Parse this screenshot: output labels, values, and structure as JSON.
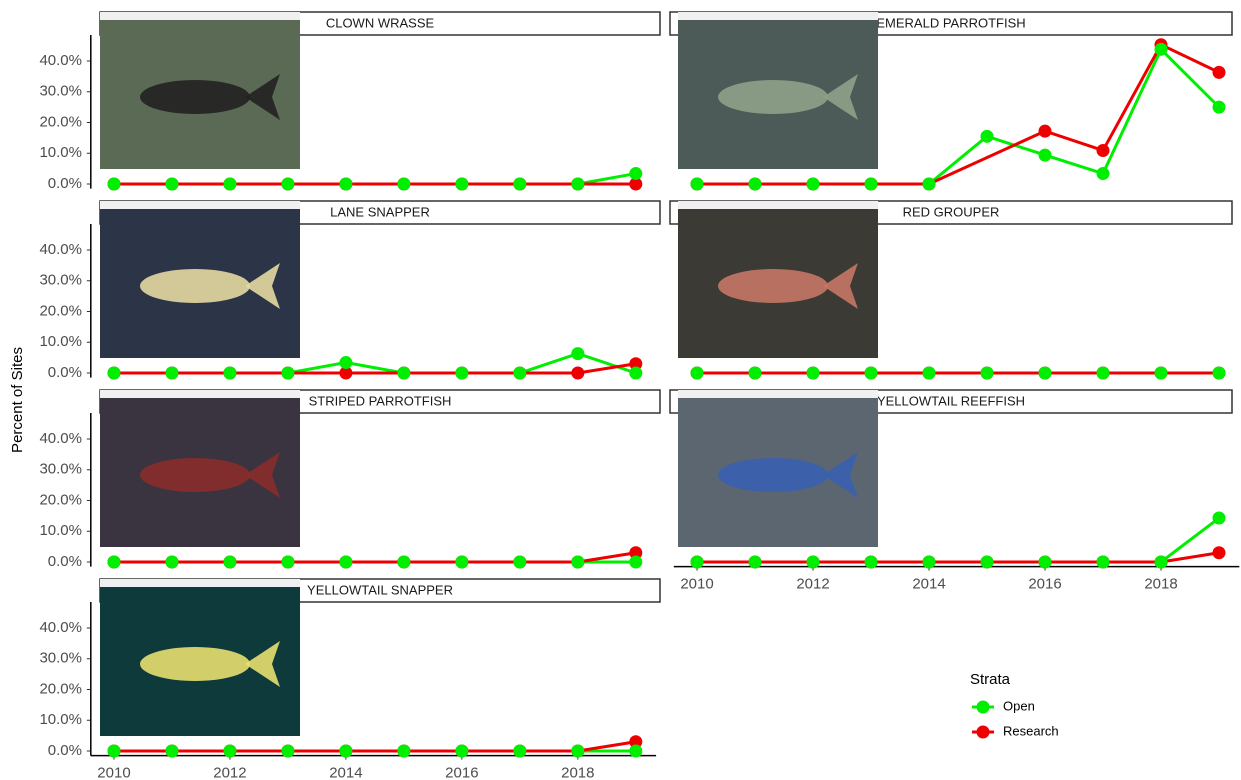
{
  "chart_data": {
    "type": "line",
    "ylabel": "Percent of Sites",
    "x": [
      2010,
      2011,
      2012,
      2013,
      2014,
      2015,
      2016,
      2017,
      2018,
      2019
    ],
    "xlim": [
      2009.6,
      2019.35
    ],
    "xticks": [
      2010,
      2012,
      2014,
      2016,
      2018
    ],
    "ylim": [
      -1.5,
      47
    ],
    "yticks": [
      {
        "value": 0,
        "label": "0.0%"
      },
      {
        "value": 10,
        "label": "10.0%"
      },
      {
        "value": 20,
        "label": "20.0%"
      },
      {
        "value": 30,
        "label": "30.0%"
      },
      {
        "value": 40,
        "label": "40.0%"
      }
    ],
    "legend_title": "Strata",
    "legend": "right",
    "series": [
      {
        "name": "Open",
        "color": "#00ee00"
      },
      {
        "name": "Research",
        "color": "#ee0000"
      }
    ],
    "panels": [
      {
        "title": "CLOWN WRASSE",
        "series": [
          {
            "values": [
              0,
              0,
              0,
              0,
              0,
              0,
              0,
              0,
              0,
              3.4
            ]
          },
          {
            "values": [
              0,
              0,
              0,
              0,
              0,
              0,
              0,
              0,
              0,
              0
            ]
          }
        ]
      },
      {
        "title": "EMERALD PARROTFISH",
        "series": [
          {
            "values": [
              0,
              0,
              0,
              0,
              0,
              15.5,
              9.4,
              3.4,
              43.8,
              25.0
            ]
          },
          {
            "x": [
              2010,
              2011,
              2012,
              2013,
              2014,
              2016,
              2017,
              2018,
              2019
            ],
            "values": [
              0,
              0,
              0,
              0,
              0,
              17.2,
              10.9,
              45.3,
              36.3
            ]
          }
        ]
      },
      {
        "title": "LANE SNAPPER",
        "series": [
          {
            "values": [
              0,
              0,
              0,
              0,
              3.4,
              0,
              0,
              0,
              6.3,
              0
            ]
          },
          {
            "values": [
              0,
              0,
              0,
              0,
              0,
              0,
              0,
              0,
              0,
              3.0
            ]
          }
        ]
      },
      {
        "title": "RED GROUPER",
        "series": [
          {
            "values": [
              0,
              0,
              0,
              0,
              0,
              0,
              0,
              0,
              0,
              0
            ]
          },
          {
            "values": [
              0,
              0,
              0,
              0,
              0,
              0,
              0,
              0,
              0,
              0
            ]
          }
        ]
      },
      {
        "title": "STRIPED PARROTFISH",
        "series": [
          {
            "values": [
              0,
              0,
              0,
              0,
              0,
              0,
              0,
              0,
              0,
              0
            ]
          },
          {
            "values": [
              0,
              0,
              0,
              0,
              0,
              0,
              0,
              0,
              0,
              3.0
            ]
          }
        ]
      },
      {
        "title": "YELLOWTAIL REEFFISH",
        "series": [
          {
            "values": [
              0,
              0,
              0,
              0,
              0,
              0,
              0,
              0,
              0,
              14.3
            ]
          },
          {
            "values": [
              0,
              0,
              0,
              0,
              0,
              0,
              0,
              0,
              0,
              3.0
            ]
          }
        ]
      },
      {
        "title": "YELLOWTAIL SNAPPER",
        "series": [
          {
            "values": [
              0,
              0,
              0,
              0,
              0,
              0,
              0,
              0,
              0,
              0
            ]
          },
          {
            "values": [
              0,
              0,
              0,
              0,
              0,
              0,
              0,
              0,
              0,
              3.0
            ]
          }
        ]
      }
    ]
  }
}
